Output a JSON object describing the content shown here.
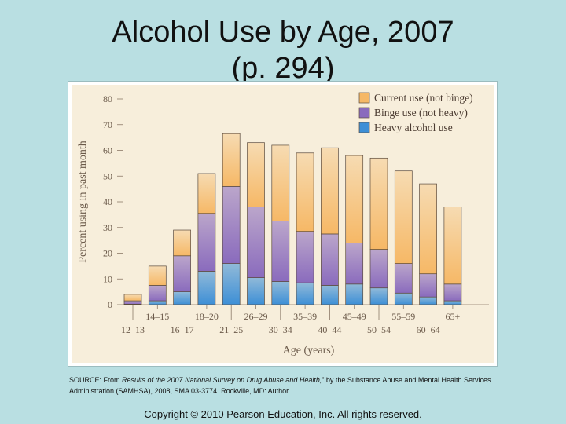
{
  "slide": {
    "title": "Alcohol Use by Age, 2007\n(p. 294)",
    "source_prefix": "SOURCE: From ",
    "source_title": "Results of the 2007 National Survey on Drug Abuse and Health,",
    "source_suffix": "” by the Substance Abuse and Mental Health Services Administration (SAMHSA), 2008, SMA 03-3774. Rockville, MD: Author.",
    "copyright": "Copyright © 2010 Pearson Education, Inc. All rights reserved."
  },
  "colors": {
    "background": "#b9dfe2",
    "chart_bg": "#f7eedb",
    "current": "#f6b866",
    "binge": "#8a6bbd",
    "heavy": "#3d8fd6"
  },
  "chart_data": {
    "type": "bar",
    "stacked": true,
    "title": "",
    "xlabel": "Age (years)",
    "ylabel": "Percent using in past month",
    "ylim": [
      0,
      80
    ],
    "yticks": [
      0,
      10,
      20,
      30,
      40,
      50,
      60,
      70,
      80
    ],
    "categories": [
      "12–13",
      "14–15",
      "16–17",
      "18–20",
      "21–25",
      "26–29",
      "30–34",
      "35–39",
      "40–44",
      "45–49",
      "50–54",
      "55–59",
      "60–64",
      "65+"
    ],
    "series": [
      {
        "name": "Heavy alcohol use",
        "values": [
          0.2,
          1.5,
          5,
          13,
          16,
          10.5,
          9,
          8.5,
          7.5,
          8,
          6.5,
          4.5,
          3,
          1.5
        ]
      },
      {
        "name": "Binge use (not heavy)",
        "values": [
          1.3,
          6,
          14,
          22.5,
          30,
          27.5,
          23.5,
          20,
          20,
          16,
          15,
          11.5,
          9,
          6.5
        ]
      },
      {
        "name": "Current use (not binge)",
        "values": [
          2.5,
          7.5,
          10,
          15.5,
          20.5,
          25,
          29.5,
          30.5,
          33.5,
          34,
          35.5,
          36,
          35,
          30
        ]
      }
    ],
    "totals": [
      4,
      15,
      29,
      51,
      66.5,
      63,
      62,
      59,
      61,
      58,
      57,
      52,
      47,
      38
    ],
    "legend": [
      "Current use (not binge)",
      "Binge use (not heavy)",
      "Heavy alcohol use"
    ],
    "legend_position": "top-right"
  }
}
